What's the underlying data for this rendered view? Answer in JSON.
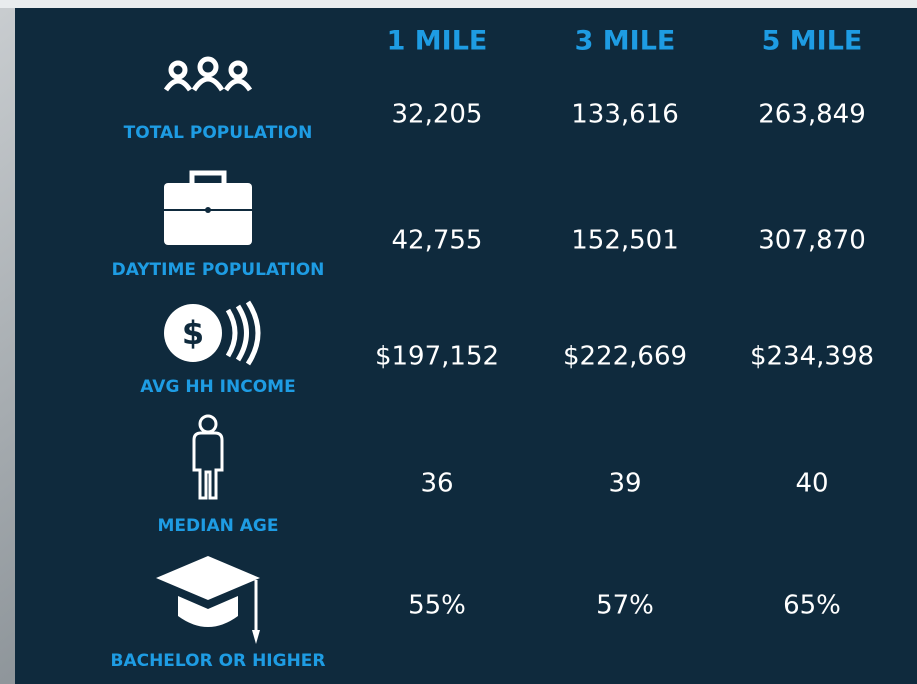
{
  "table": {
    "columns": [
      "1 MILE",
      "3 MILE",
      "5 MILE"
    ],
    "rows": [
      {
        "label": "TOTAL POPULATION",
        "values": [
          "32,205",
          "133,616",
          "263,849"
        ]
      },
      {
        "label": "DAYTIME POPULATION",
        "values": [
          "42,755",
          "152,501",
          "307,870"
        ]
      },
      {
        "label": "AVG HH INCOME",
        "values": [
          "$197,152",
          "$222,669",
          "$234,398"
        ]
      },
      {
        "label": "MEDIAN AGE",
        "values": [
          "36",
          "39",
          "40"
        ]
      },
      {
        "label": "BACHELOR OR HIGHER",
        "values": [
          "55%",
          "57%",
          "65%"
        ]
      }
    ]
  }
}
